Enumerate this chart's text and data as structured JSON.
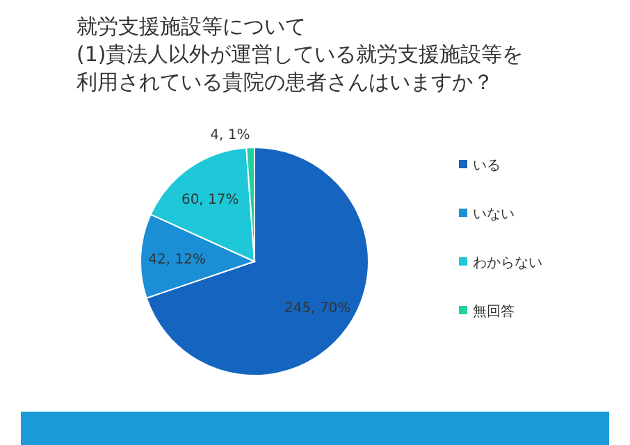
{
  "chart_data": {
    "type": "pie",
    "title": "就労支援施設等について",
    "subtitle": "(1)貴法人以外が運営している就労支援施設等を利用されている貴院の患者さんはいますか？",
    "categories": [
      "いる",
      "いない",
      "わからない",
      "無回答"
    ],
    "values": [
      245,
      42,
      60,
      4
    ],
    "colors": [
      "#1565c0",
      "#1a8fd6",
      "#1fc8d8",
      "#20d2a2"
    ],
    "value_labels": [
      "245, 70%",
      "42, 12%",
      "60, 17%",
      "4, 1%"
    ],
    "legend": "right"
  }
}
